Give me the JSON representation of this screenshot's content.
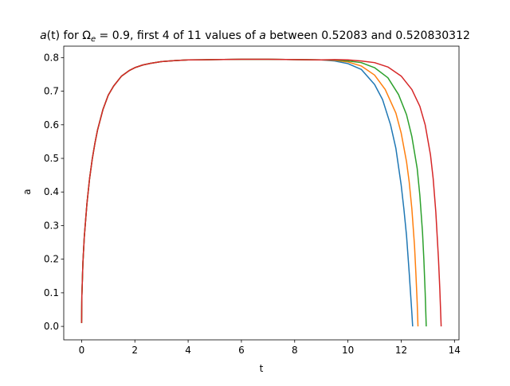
{
  "chart_data": {
    "type": "line",
    "title": "a(t) for Ωe = 0.9, first 4 of 11 values of a between 0.52083 and 0.520830312",
    "title_parts": {
      "a1": "a",
      "p1": "(t) for ",
      "omega": "Ω",
      "omega_sub": "e",
      "p2": " = 0.9, first 4 of 11 values of ",
      "a2": "a",
      "p3": " between 0.52083 and 0.520830312"
    },
    "xlabel": "t",
    "ylabel": "a",
    "xlim": [
      -0.67,
      14.17
    ],
    "ylim": [
      -0.04,
      0.834
    ],
    "xticks": [
      0,
      2,
      4,
      6,
      8,
      10,
      12,
      14
    ],
    "yticks": [
      0.0,
      0.1,
      0.2,
      0.3,
      0.4,
      0.5,
      0.6,
      0.7,
      0.8
    ],
    "grid": false,
    "legend": "none",
    "shared_rise": {
      "t": [
        0.0,
        0.01,
        0.05,
        0.1,
        0.2,
        0.3,
        0.4,
        0.5,
        0.6,
        0.8,
        1.0,
        1.2,
        1.5,
        1.8,
        2.0,
        2.3,
        2.6,
        3.0,
        3.5,
        4.0,
        5.0,
        6.0,
        7.0,
        8.0,
        9.0
      ],
      "a": [
        0.01,
        0.09,
        0.19,
        0.265,
        0.365,
        0.44,
        0.498,
        0.545,
        0.585,
        0.645,
        0.688,
        0.715,
        0.745,
        0.762,
        0.77,
        0.778,
        0.783,
        0.788,
        0.791,
        0.793,
        0.794,
        0.795,
        0.795,
        0.794,
        0.793
      ]
    },
    "series": [
      {
        "color": "#1f77b4",
        "t": [
          9.5,
          10.0,
          10.5,
          11.0,
          11.3,
          11.6,
          11.8,
          12.0,
          12.1,
          12.2,
          12.3,
          12.35,
          12.4,
          12.43
        ],
        "a": [
          0.79,
          0.782,
          0.765,
          0.72,
          0.675,
          0.6,
          0.53,
          0.42,
          0.35,
          0.27,
          0.16,
          0.1,
          0.04,
          0.0
        ]
      },
      {
        "color": "#ff7f0e",
        "t": [
          9.5,
          10.0,
          10.5,
          11.0,
          11.4,
          11.8,
          12.0,
          12.2,
          12.3,
          12.4,
          12.5,
          12.55,
          12.6,
          12.63
        ],
        "a": [
          0.792,
          0.787,
          0.775,
          0.748,
          0.705,
          0.635,
          0.575,
          0.49,
          0.43,
          0.35,
          0.24,
          0.16,
          0.07,
          0.0
        ]
      },
      {
        "color": "#2ca02c",
        "t": [
          9.5,
          10.0,
          10.5,
          11.0,
          11.5,
          11.9,
          12.2,
          12.4,
          12.6,
          12.7,
          12.8,
          12.85,
          12.9,
          12.94
        ],
        "a": [
          0.793,
          0.79,
          0.785,
          0.77,
          0.74,
          0.69,
          0.63,
          0.565,
          0.47,
          0.39,
          0.28,
          0.2,
          0.1,
          0.0
        ]
      },
      {
        "color": "#d62728",
        "t": [
          9.5,
          10.0,
          10.5,
          11.0,
          11.5,
          12.0,
          12.4,
          12.7,
          12.9,
          13.1,
          13.2,
          13.3,
          13.4,
          13.45,
          13.5
        ],
        "a": [
          0.794,
          0.793,
          0.79,
          0.785,
          0.772,
          0.745,
          0.705,
          0.655,
          0.6,
          0.51,
          0.44,
          0.34,
          0.2,
          0.11,
          0.0
        ]
      }
    ]
  }
}
